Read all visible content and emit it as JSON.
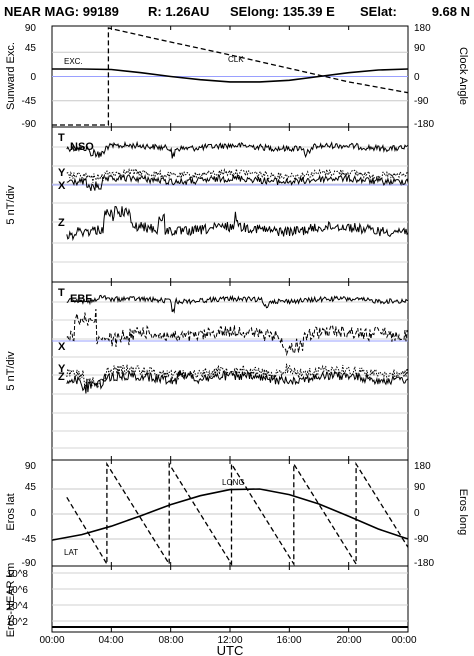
{
  "header": {
    "title": "NEAR MAG: 99189",
    "range": "R: 1.26AU",
    "selong": "SElong: 135.39 E",
    "selat": "SElat:",
    "selat_value": "9.68 N"
  },
  "x_axis": {
    "label": "UTC",
    "ticks": [
      "00:00",
      "04:00",
      "08:00",
      "12:00",
      "16:00",
      "20:00",
      "00:00"
    ],
    "range_hours": [
      0,
      24
    ]
  },
  "chart_data": [
    {
      "type": "line",
      "panel": "sunward-clock",
      "ylabel_left": "Sunward Exc.",
      "ylabel_right": "Clock Angle",
      "yticks_left": [
        "90",
        "45",
        "0",
        "-45",
        "-90"
      ],
      "yticks_right": [
        "180",
        "90",
        "0",
        "-90",
        "-180"
      ],
      "ylim": [
        -90,
        90
      ],
      "grid": true,
      "series": [
        {
          "name": "EXC.",
          "style": "solid",
          "x": [
            0,
            2,
            4,
            6,
            8,
            10,
            12,
            14,
            16,
            18,
            20,
            22,
            24
          ],
          "y": [
            14,
            14,
            13,
            7,
            0,
            -6,
            -10,
            -10,
            -7,
            0,
            7,
            12,
            14
          ]
        },
        {
          "name": "CLK",
          "style": "dashed",
          "axis": "right",
          "x": [
            0,
            3.8,
            3.8,
            7,
            12,
            16,
            20,
            24
          ],
          "y": [
            -180,
            -180,
            180,
            140,
            80,
            30,
            -20,
            -60
          ]
        }
      ]
    },
    {
      "type": "line",
      "panel": "NSO",
      "title": "NSO",
      "ylabel_left": "5 nT/div",
      "series": [
        {
          "name": "T",
          "style": "solid"
        },
        {
          "name": "Y",
          "style": "dotted"
        },
        {
          "name": "X",
          "style": "solid"
        },
        {
          "name": "Z",
          "style": "solid"
        }
      ]
    },
    {
      "type": "line",
      "panel": "EBF",
      "title": "EBF",
      "ylabel_left": "5 nT/div",
      "series": [
        {
          "name": "T",
          "style": "solid"
        },
        {
          "name": "X",
          "style": "dashed"
        },
        {
          "name": "Y",
          "style": "dotted"
        },
        {
          "name": "Z",
          "style": "solid"
        }
      ]
    },
    {
      "type": "line",
      "panel": "eros-lat-long",
      "ylabel_left": "Eros lat",
      "ylabel_right": "Eros long",
      "yticks_left": [
        "90",
        "45",
        "0",
        "-45",
        "-90"
      ],
      "yticks_right": [
        "180",
        "90",
        "0",
        "-90",
        "-180"
      ],
      "ylim": [
        -90,
        90
      ],
      "grid": true,
      "series": [
        {
          "name": "LAT",
          "style": "solid",
          "x": [
            0,
            2,
            4,
            6,
            8,
            10,
            12,
            14,
            16,
            18,
            20,
            22,
            24
          ],
          "y": [
            -47,
            -37,
            -22,
            -3,
            17,
            33,
            44,
            45,
            35,
            18,
            -4,
            -27,
            -45
          ]
        },
        {
          "name": "LONG",
          "style": "dashed",
          "axis": "right",
          "x": [
            1,
            3.7,
            3.7,
            7.9,
            7.9,
            12.1,
            12.1,
            16.3,
            16.3,
            20.5,
            20.5,
            24
          ],
          "y": [
            60,
            -180,
            180,
            -180,
            180,
            -180,
            180,
            -180,
            180,
            -180,
            180,
            -120
          ]
        }
      ]
    },
    {
      "type": "line",
      "panel": "eros-near-distance",
      "ylabel_left": "Eros-NEAR km",
      "yscale": "log",
      "yticks_left": [
        "10^8",
        "10^6",
        "10^4",
        "10^2"
      ],
      "series": [
        {
          "name": "distance",
          "style": "solid",
          "x": [
            0,
            24
          ],
          "y": [
            40,
            40
          ]
        }
      ]
    }
  ]
}
